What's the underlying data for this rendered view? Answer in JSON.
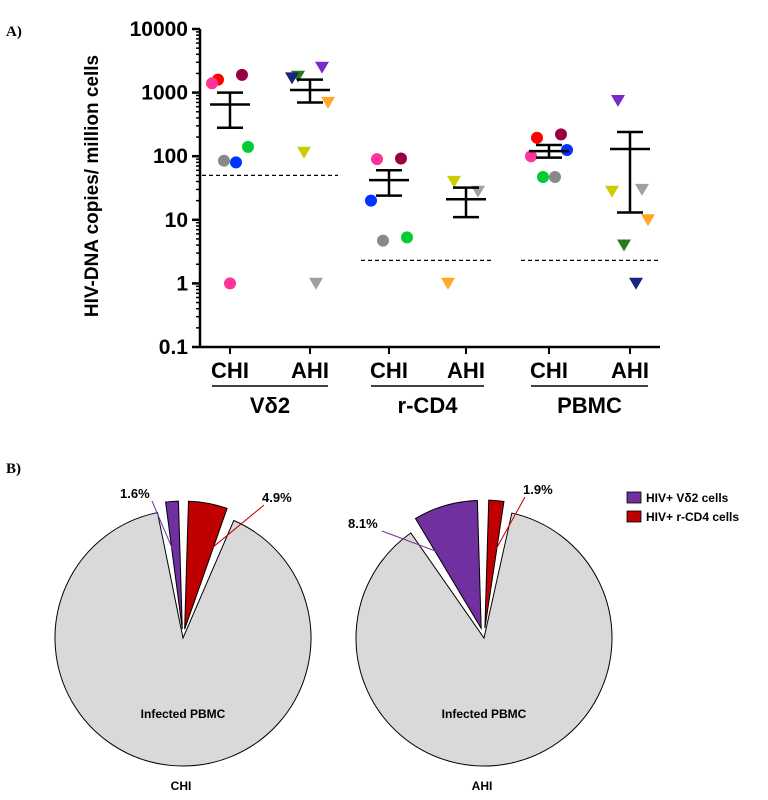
{
  "panel_a": {
    "label": "A)",
    "chart_data": {
      "type": "scatter",
      "ylabel": "HIV-DNA copies/ million cells",
      "yscale": "log",
      "ylim": [
        0.1,
        10000
      ],
      "yticks": [
        "0.1",
        "1",
        "10",
        "100",
        "1000",
        "10000"
      ],
      "groups": [
        "CHI",
        "AHI",
        "CHI",
        "AHI",
        "CHI",
        "AHI"
      ],
      "cell_types": [
        "Vδ2",
        "r-CD4",
        "PBMC"
      ],
      "thresholds": [
        50,
        2.3,
        2.3
      ],
      "series": [
        {
          "group": "CHI",
          "cell": "Vδ2",
          "marker": "circle",
          "points": [
            {
              "v": 1600,
              "c": "#ff0000"
            },
            {
              "v": 1900,
              "c": "#990044"
            },
            {
              "v": 1400,
              "c": "#ff3399"
            },
            {
              "v": 140,
              "c": "#00cc33"
            },
            {
              "v": 85,
              "c": "#888888"
            },
            {
              "v": 80,
              "c": "#0033ff"
            },
            {
              "v": 1,
              "c": "#ff3399"
            }
          ],
          "mean": 650,
          "sem": [
            280,
            1000
          ]
        },
        {
          "group": "AHI",
          "cell": "Vδ2",
          "marker": "triangle",
          "points": [
            {
              "v": 1800,
              "c": "#2a7a1a"
            },
            {
              "v": 2500,
              "c": "#7a2ac8"
            },
            {
              "v": 1700,
              "c": "#1a237e"
            },
            {
              "v": 700,
              "c": "#ffa726"
            },
            {
              "v": 115,
              "c": "#cccc00"
            },
            {
              "v": 1,
              "c": "#a0a0a0"
            }
          ],
          "mean": 1100,
          "sem": [
            700,
            1600
          ]
        },
        {
          "group": "CHI",
          "cell": "r-CD4",
          "marker": "circle",
          "points": [
            {
              "v": 90,
              "c": "#ff3399"
            },
            {
              "v": 92,
              "c": "#990044"
            },
            {
              "v": 20,
              "c": "#0033ff"
            },
            {
              "v": 5.3,
              "c": "#00cc33"
            },
            {
              "v": 4.7,
              "c": "#888888"
            }
          ],
          "mean": 42,
          "sem": [
            24,
            60
          ]
        },
        {
          "group": "AHI",
          "cell": "r-CD4",
          "marker": "triangle",
          "points": [
            {
              "v": 40,
              "c": "#cccc00"
            },
            {
              "v": 28,
              "c": "#a0a0a0"
            },
            {
              "v": 1,
              "c": "#ffa726"
            }
          ],
          "mean": 21,
          "sem": [
            11,
            32
          ]
        },
        {
          "group": "CHI",
          "cell": "PBMC",
          "marker": "circle",
          "points": [
            {
              "v": 195,
              "c": "#ff0000"
            },
            {
              "v": 220,
              "c": "#990044"
            },
            {
              "v": 100,
              "c": "#ff3399"
            },
            {
              "v": 125,
              "c": "#0033ff"
            },
            {
              "v": 47,
              "c": "#00cc33"
            },
            {
              "v": 47,
              "c": "#888888"
            }
          ],
          "mean": 120,
          "sem": [
            95,
            150
          ]
        },
        {
          "group": "AHI",
          "cell": "PBMC",
          "marker": "triangle",
          "points": [
            {
              "v": 750,
              "c": "#7a2ac8"
            },
            {
              "v": 30,
              "c": "#a0a0a0"
            },
            {
              "v": 28,
              "c": "#cccc00"
            },
            {
              "v": 10,
              "c": "#ffa726"
            },
            {
              "v": 4,
              "c": "#2a7a1a"
            },
            {
              "v": 1,
              "c": "#1a237e"
            }
          ],
          "mean": 130,
          "sem": [
            13,
            240
          ]
        }
      ]
    }
  },
  "panel_b": {
    "label": "B)",
    "chart_data": [
      {
        "type": "pie",
        "label": "CHI",
        "inside_label": "Infected PBMC",
        "slices": [
          {
            "name": "HIV+ Vδ2 cells",
            "value": 1.6,
            "label": "1.6%",
            "color": "#7030a0"
          },
          {
            "name": "HIV+ r-CD4 cells",
            "value": 4.9,
            "label": "4.9%",
            "color": "#c00000"
          },
          {
            "name": "Infected PBMC",
            "value": 93.5,
            "color": "#d9d9d9"
          }
        ]
      },
      {
        "type": "pie",
        "label": "AHI",
        "inside_label": "Infected PBMC",
        "slices": [
          {
            "name": "HIV+ Vδ2 cells",
            "value": 8.1,
            "label": "8.1%",
            "color": "#7030a0"
          },
          {
            "name": "HIV+ r-CD4 cells",
            "value": 1.9,
            "label": "1.9%",
            "color": "#c00000"
          },
          {
            "name": "Infected PBMC",
            "value": 90.0,
            "color": "#d9d9d9"
          }
        ]
      }
    ],
    "legend": [
      {
        "label": "HIV+ Vδ2 cells",
        "color": "#7030a0"
      },
      {
        "label": "HIV+ r-CD4 cells",
        "color": "#c00000"
      }
    ]
  }
}
